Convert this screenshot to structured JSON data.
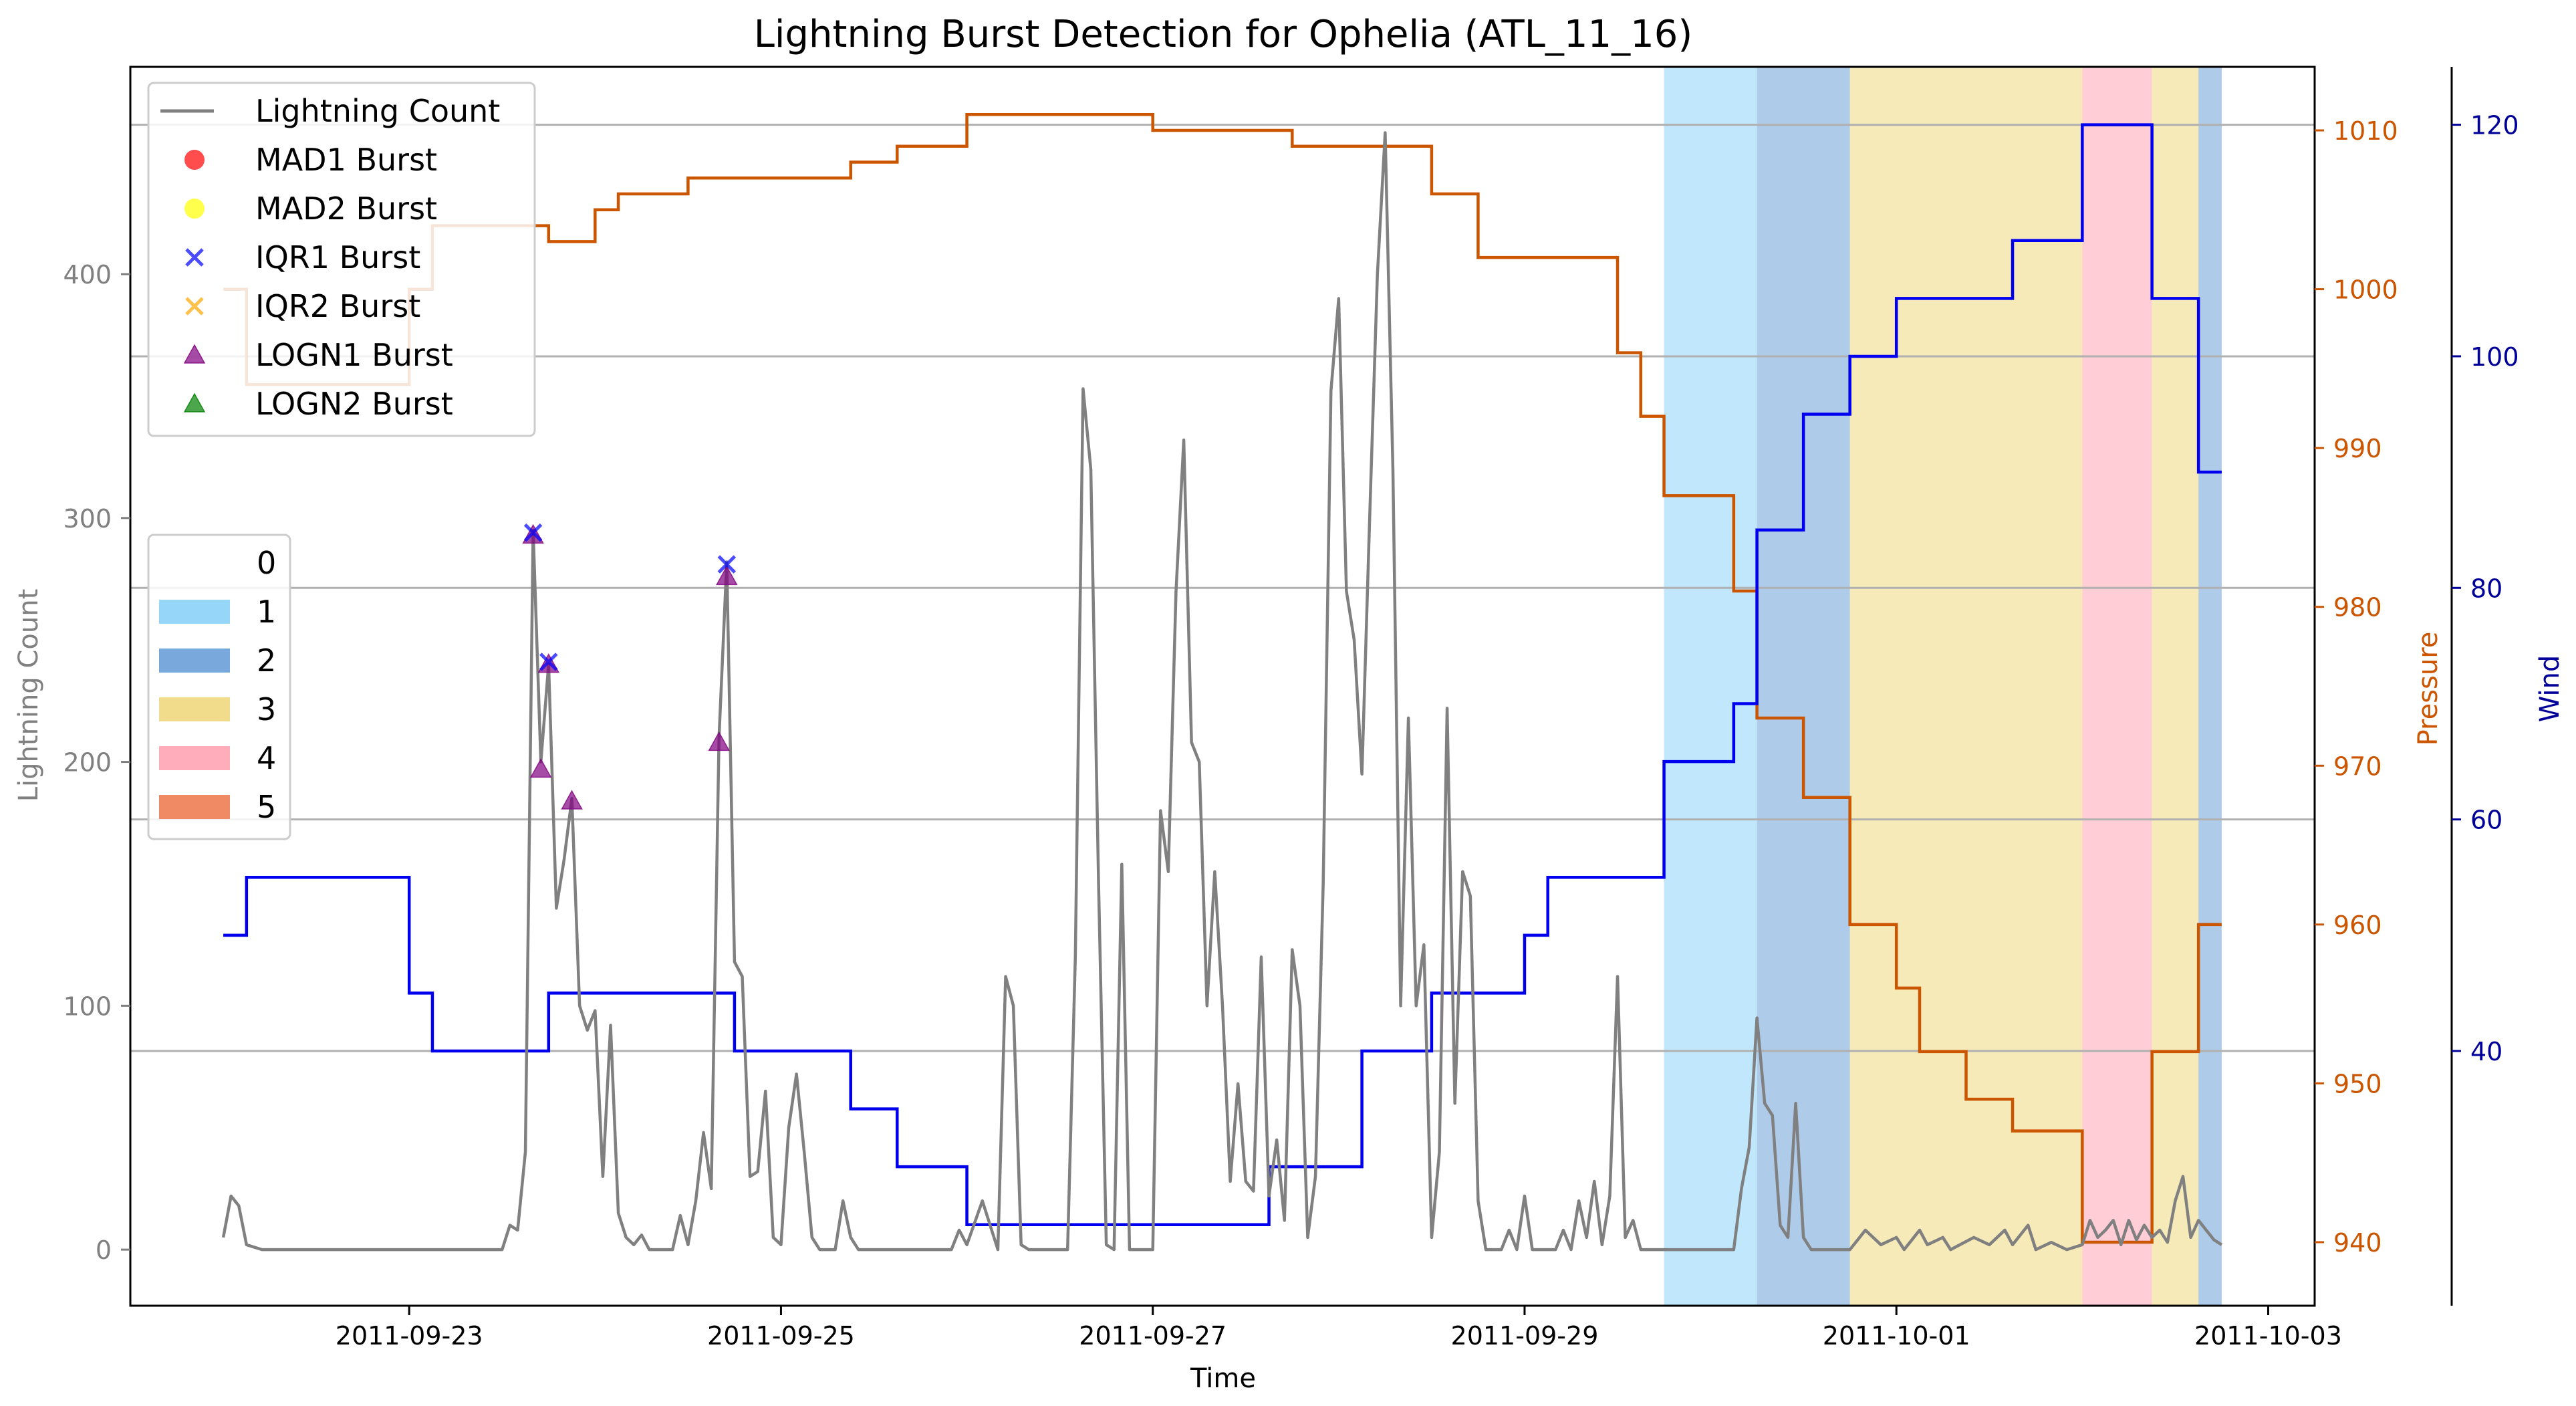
{
  "chart_data": {
    "type": "line",
    "title": "Lightning Burst Detection for Ophelia (ATL_11_16)",
    "xlabel": "Time",
    "ylabel_left": "Lightning Count",
    "ylabel_pressure": "Pressure",
    "ylabel_wind": "Wind",
    "x_range": [
      "2011-09-21 12:00",
      "2011-10-03 06:00"
    ],
    "x_ticks": [
      "2011-09-23",
      "2011-09-25",
      "2011-09-27",
      "2011-09-29",
      "2011-10-01",
      "2011-10-03"
    ],
    "y_left_range": [
      -23,
      485
    ],
    "y_left_ticks": [
      0,
      100,
      200,
      300,
      400
    ],
    "y_pressure_range": [
      936,
      1014
    ],
    "y_pressure_ticks": [
      940,
      950,
      960,
      970,
      980,
      990,
      1000,
      1010
    ],
    "y_wind_range": [
      18,
      125
    ],
    "y_wind_ticks": [
      40,
      60,
      80,
      100,
      120
    ],
    "grid": "horizontal",
    "colors": {
      "lightning": "#808080",
      "pressure": "#cc5500",
      "wind": "#0000ee",
      "cat1": "#96d7f9",
      "cat2": "#79a8dc",
      "cat3": "#f0dc8b",
      "cat4": "#ffacbb",
      "cat5": "#ef8a64",
      "mad1": "#ff0000",
      "mad2": "#ffff00",
      "iqr1": "#0000ff",
      "iqr2": "#ffa500",
      "logn1": "#800080",
      "logn2": "#008000"
    },
    "legend_series": {
      "placement": "upper-left",
      "entries": [
        {
          "key": "lightning",
          "label": "Lightning Count",
          "marker": "line"
        },
        {
          "key": "mad1",
          "label": "MAD1 Burst",
          "marker": "circle"
        },
        {
          "key": "mad2",
          "label": "MAD2 Burst",
          "marker": "circle"
        },
        {
          "key": "iqr1",
          "label": "IQR1 Burst",
          "marker": "x"
        },
        {
          "key": "iqr2",
          "label": "IQR2 Burst",
          "marker": "x"
        },
        {
          "key": "logn1",
          "label": "LOGN1 Burst",
          "marker": "triangle"
        },
        {
          "key": "logn2",
          "label": "LOGN2 Burst",
          "marker": "triangle"
        }
      ]
    },
    "legend_categories": {
      "placement": "center-left",
      "entries": [
        {
          "label": "0",
          "color": "none"
        },
        {
          "label": "1",
          "color": "#96d7f9"
        },
        {
          "label": "2",
          "color": "#79a8dc"
        },
        {
          "label": "3",
          "color": "#f0dc8b"
        },
        {
          "label": "4",
          "color": "#ffacbb"
        },
        {
          "label": "5",
          "color": "#ef8a64"
        }
      ]
    },
    "category_spans": [
      {
        "category": 1,
        "start": "2011-09-29 18:00",
        "end": "2011-09-30 06:00"
      },
      {
        "category": 2,
        "start": "2011-09-30 06:00",
        "end": "2011-09-30 18:00"
      },
      {
        "category": 3,
        "start": "2011-09-30 18:00",
        "end": "2011-10-02 00:00"
      },
      {
        "category": 4,
        "start": "2011-10-02 00:00",
        "end": "2011-10-02 09:00"
      },
      {
        "category": 3,
        "start": "2011-10-02 09:00",
        "end": "2011-10-02 15:00"
      },
      {
        "category": 2,
        "start": "2011-10-02 15:00",
        "end": "2011-10-02 18:00"
      }
    ],
    "pressure_series": [
      {
        "t": "2011-09-22 00:00",
        "v": 1000
      },
      {
        "t": "2011-09-22 03:00",
        "v": 994
      },
      {
        "t": "2011-09-23 00:00",
        "v": 1000
      },
      {
        "t": "2011-09-23 03:00",
        "v": 1004
      },
      {
        "t": "2011-09-23 18:00",
        "v": 1003
      },
      {
        "t": "2011-09-24 00:00",
        "v": 1005
      },
      {
        "t": "2011-09-24 03:00",
        "v": 1006
      },
      {
        "t": "2011-09-24 12:00",
        "v": 1007
      },
      {
        "t": "2011-09-25 09:00",
        "v": 1008
      },
      {
        "t": "2011-09-25 15:00",
        "v": 1009
      },
      {
        "t": "2011-09-26 00:00",
        "v": 1011
      },
      {
        "t": "2011-09-27 00:00",
        "v": 1010
      },
      {
        "t": "2011-09-27 18:00",
        "v": 1009
      },
      {
        "t": "2011-09-28 12:00",
        "v": 1006
      },
      {
        "t": "2011-09-28 18:00",
        "v": 1002
      },
      {
        "t": "2011-09-29 12:00",
        "v": 996
      },
      {
        "t": "2011-09-29 15:00",
        "v": 992
      },
      {
        "t": "2011-09-29 18:00",
        "v": 987
      },
      {
        "t": "2011-09-30 03:00",
        "v": 981
      },
      {
        "t": "2011-09-30 06:00",
        "v": 973
      },
      {
        "t": "2011-09-30 12:00",
        "v": 968
      },
      {
        "t": "2011-09-30 18:00",
        "v": 960
      },
      {
        "t": "2011-10-01 00:00",
        "v": 956
      },
      {
        "t": "2011-10-01 03:00",
        "v": 952
      },
      {
        "t": "2011-10-01 09:00",
        "v": 949
      },
      {
        "t": "2011-10-01 15:00",
        "v": 947
      },
      {
        "t": "2011-10-02 00:00",
        "v": 940
      },
      {
        "t": "2011-10-02 09:00",
        "v": 952
      },
      {
        "t": "2011-10-02 15:00",
        "v": 960
      },
      {
        "t": "2011-10-02 18:00",
        "v": 960
      }
    ],
    "wind_series": [
      {
        "t": "2011-09-22 00:00",
        "v": 50
      },
      {
        "t": "2011-09-22 03:00",
        "v": 55
      },
      {
        "t": "2011-09-23 00:00",
        "v": 45
      },
      {
        "t": "2011-09-23 03:00",
        "v": 40
      },
      {
        "t": "2011-09-23 18:00",
        "v": 45
      },
      {
        "t": "2011-09-24 18:00",
        "v": 40
      },
      {
        "t": "2011-09-25 09:00",
        "v": 35
      },
      {
        "t": "2011-09-25 15:00",
        "v": 30
      },
      {
        "t": "2011-09-26 00:00",
        "v": 25
      },
      {
        "t": "2011-09-27 15:00",
        "v": 30
      },
      {
        "t": "2011-09-28 03:00",
        "v": 40
      },
      {
        "t": "2011-09-28 12:00",
        "v": 45
      },
      {
        "t": "2011-09-29 00:00",
        "v": 50
      },
      {
        "t": "2011-09-29 03:00",
        "v": 55
      },
      {
        "t": "2011-09-29 18:00",
        "v": 65
      },
      {
        "t": "2011-09-30 03:00",
        "v": 70
      },
      {
        "t": "2011-09-30 06:00",
        "v": 85
      },
      {
        "t": "2011-09-30 12:00",
        "v": 95
      },
      {
        "t": "2011-09-30 18:00",
        "v": 100
      },
      {
        "t": "2011-10-01 00:00",
        "v": 105
      },
      {
        "t": "2011-10-01 15:00",
        "v": 110
      },
      {
        "t": "2011-10-02 00:00",
        "v": 120
      },
      {
        "t": "2011-10-02 09:00",
        "v": 105
      },
      {
        "t": "2011-10-02 15:00",
        "v": 90
      },
      {
        "t": "2011-10-02 18:00",
        "v": 90
      }
    ],
    "lightning_series": [
      {
        "t": "2011-09-22 00:00",
        "v": 5
      },
      {
        "t": "2011-09-22 01:00",
        "v": 22
      },
      {
        "t": "2011-09-22 02:00",
        "v": 18
      },
      {
        "t": "2011-09-22 03:00",
        "v": 2
      },
      {
        "t": "2011-09-22 05:00",
        "v": 0
      },
      {
        "t": "2011-09-23 12:00",
        "v": 0
      },
      {
        "t": "2011-09-23 13:00",
        "v": 10
      },
      {
        "t": "2011-09-23 14:00",
        "v": 8
      },
      {
        "t": "2011-09-23 15:00",
        "v": 40
      },
      {
        "t": "2011-09-23 16:00",
        "v": 295
      },
      {
        "t": "2011-09-23 17:00",
        "v": 200
      },
      {
        "t": "2011-09-23 18:00",
        "v": 240
      },
      {
        "t": "2011-09-23 19:00",
        "v": 140
      },
      {
        "t": "2011-09-23 20:00",
        "v": 160
      },
      {
        "t": "2011-09-23 21:00",
        "v": 185
      },
      {
        "t": "2011-09-23 22:00",
        "v": 100
      },
      {
        "t": "2011-09-23 23:00",
        "v": 90
      },
      {
        "t": "2011-09-24 00:00",
        "v": 98
      },
      {
        "t": "2011-09-24 01:00",
        "v": 30
      },
      {
        "t": "2011-09-24 02:00",
        "v": 92
      },
      {
        "t": "2011-09-24 03:00",
        "v": 15
      },
      {
        "t": "2011-09-24 04:00",
        "v": 5
      },
      {
        "t": "2011-09-24 05:00",
        "v": 2
      },
      {
        "t": "2011-09-24 06:00",
        "v": 6
      },
      {
        "t": "2011-09-24 07:00",
        "v": 0
      },
      {
        "t": "2011-09-24 10:00",
        "v": 0
      },
      {
        "t": "2011-09-24 11:00",
        "v": 14
      },
      {
        "t": "2011-09-24 12:00",
        "v": 2
      },
      {
        "t": "2011-09-24 13:00",
        "v": 20
      },
      {
        "t": "2011-09-24 14:00",
        "v": 48
      },
      {
        "t": "2011-09-24 15:00",
        "v": 25
      },
      {
        "t": "2011-09-24 16:00",
        "v": 210
      },
      {
        "t": "2011-09-24 17:00",
        "v": 282
      },
      {
        "t": "2011-09-24 18:00",
        "v": 118
      },
      {
        "t": "2011-09-24 19:00",
        "v": 112
      },
      {
        "t": "2011-09-24 20:00",
        "v": 30
      },
      {
        "t": "2011-09-24 21:00",
        "v": 32
      },
      {
        "t": "2011-09-24 22:00",
        "v": 65
      },
      {
        "t": "2011-09-24 23:00",
        "v": 5
      },
      {
        "t": "2011-09-25 00:00",
        "v": 2
      },
      {
        "t": "2011-09-25 01:00",
        "v": 50
      },
      {
        "t": "2011-09-25 02:00",
        "v": 72
      },
      {
        "t": "2011-09-25 03:00",
        "v": 40
      },
      {
        "t": "2011-09-25 04:00",
        "v": 5
      },
      {
        "t": "2011-09-25 05:00",
        "v": 0
      },
      {
        "t": "2011-09-25 07:00",
        "v": 0
      },
      {
        "t": "2011-09-25 08:00",
        "v": 20
      },
      {
        "t": "2011-09-25 09:00",
        "v": 5
      },
      {
        "t": "2011-09-25 10:00",
        "v": 0
      },
      {
        "t": "2011-09-25 22:00",
        "v": 0
      },
      {
        "t": "2011-09-25 23:00",
        "v": 8
      },
      {
        "t": "2011-09-26 00:00",
        "v": 2
      },
      {
        "t": "2011-09-26 02:00",
        "v": 20
      },
      {
        "t": "2011-09-26 03:00",
        "v": 10
      },
      {
        "t": "2011-09-26 04:00",
        "v": 0
      },
      {
        "t": "2011-09-26 05:00",
        "v": 112
      },
      {
        "t": "2011-09-26 06:00",
        "v": 100
      },
      {
        "t": "2011-09-26 07:00",
        "v": 2
      },
      {
        "t": "2011-09-26 08:00",
        "v": 0
      },
      {
        "t": "2011-09-26 13:00",
        "v": 0
      },
      {
        "t": "2011-09-26 14:00",
        "v": 120
      },
      {
        "t": "2011-09-26 15:00",
        "v": 353
      },
      {
        "t": "2011-09-26 16:00",
        "v": 320
      },
      {
        "t": "2011-09-26 17:00",
        "v": 150
      },
      {
        "t": "2011-09-26 18:00",
        "v": 2
      },
      {
        "t": "2011-09-26 19:00",
        "v": 0
      },
      {
        "t": "2011-09-26 20:00",
        "v": 158
      },
      {
        "t": "2011-09-26 21:00",
        "v": 0
      },
      {
        "t": "2011-09-27 00:00",
        "v": 0
      },
      {
        "t": "2011-09-27 01:00",
        "v": 180
      },
      {
        "t": "2011-09-27 02:00",
        "v": 155
      },
      {
        "t": "2011-09-27 03:00",
        "v": 270
      },
      {
        "t": "2011-09-27 04:00",
        "v": 332
      },
      {
        "t": "2011-09-27 05:00",
        "v": 208
      },
      {
        "t": "2011-09-27 06:00",
        "v": 200
      },
      {
        "t": "2011-09-27 07:00",
        "v": 100
      },
      {
        "t": "2011-09-27 08:00",
        "v": 155
      },
      {
        "t": "2011-09-27 09:00",
        "v": 100
      },
      {
        "t": "2011-09-27 10:00",
        "v": 28
      },
      {
        "t": "2011-09-27 11:00",
        "v": 68
      },
      {
        "t": "2011-09-27 12:00",
        "v": 28
      },
      {
        "t": "2011-09-27 13:00",
        "v": 24
      },
      {
        "t": "2011-09-27 14:00",
        "v": 120
      },
      {
        "t": "2011-09-27 15:00",
        "v": 22
      },
      {
        "t": "2011-09-27 16:00",
        "v": 45
      },
      {
        "t": "2011-09-27 17:00",
        "v": 12
      },
      {
        "t": "2011-09-27 18:00",
        "v": 123
      },
      {
        "t": "2011-09-27 19:00",
        "v": 100
      },
      {
        "t": "2011-09-27 20:00",
        "v": 5
      },
      {
        "t": "2011-09-27 21:00",
        "v": 30
      },
      {
        "t": "2011-09-27 22:00",
        "v": 150
      },
      {
        "t": "2011-09-27 23:00",
        "v": 352
      },
      {
        "t": "2011-09-28 00:00",
        "v": 390
      },
      {
        "t": "2011-09-28 01:00",
        "v": 270
      },
      {
        "t": "2011-09-28 02:00",
        "v": 250
      },
      {
        "t": "2011-09-28 03:00",
        "v": 195
      },
      {
        "t": "2011-09-28 04:00",
        "v": 300
      },
      {
        "t": "2011-09-28 05:00",
        "v": 400
      },
      {
        "t": "2011-09-28 06:00",
        "v": 458
      },
      {
        "t": "2011-09-28 07:00",
        "v": 320
      },
      {
        "t": "2011-09-28 08:00",
        "v": 100
      },
      {
        "t": "2011-09-28 09:00",
        "v": 218
      },
      {
        "t": "2011-09-28 10:00",
        "v": 100
      },
      {
        "t": "2011-09-28 11:00",
        "v": 125
      },
      {
        "t": "2011-09-28 12:00",
        "v": 5
      },
      {
        "t": "2011-09-28 13:00",
        "v": 40
      },
      {
        "t": "2011-09-28 14:00",
        "v": 222
      },
      {
        "t": "2011-09-28 15:00",
        "v": 60
      },
      {
        "t": "2011-09-28 16:00",
        "v": 155
      },
      {
        "t": "2011-09-28 17:00",
        "v": 145
      },
      {
        "t": "2011-09-28 18:00",
        "v": 20
      },
      {
        "t": "2011-09-28 19:00",
        "v": 0
      },
      {
        "t": "2011-09-28 21:00",
        "v": 0
      },
      {
        "t": "2011-09-28 22:00",
        "v": 8
      },
      {
        "t": "2011-09-28 23:00",
        "v": 0
      },
      {
        "t": "2011-09-29 00:00",
        "v": 22
      },
      {
        "t": "2011-09-29 01:00",
        "v": 0
      },
      {
        "t": "2011-09-29 04:00",
        "v": 0
      },
      {
        "t": "2011-09-29 05:00",
        "v": 8
      },
      {
        "t": "2011-09-29 06:00",
        "v": 0
      },
      {
        "t": "2011-09-29 07:00",
        "v": 20
      },
      {
        "t": "2011-09-29 08:00",
        "v": 5
      },
      {
        "t": "2011-09-29 09:00",
        "v": 28
      },
      {
        "t": "2011-09-29 10:00",
        "v": 2
      },
      {
        "t": "2011-09-29 11:00",
        "v": 22
      },
      {
        "t": "2011-09-29 12:00",
        "v": 112
      },
      {
        "t": "2011-09-29 13:00",
        "v": 5
      },
      {
        "t": "2011-09-29 14:00",
        "v": 12
      },
      {
        "t": "2011-09-29 15:00",
        "v": 0
      },
      {
        "t": "2011-09-30 03:00",
        "v": 0
      },
      {
        "t": "2011-09-30 04:00",
        "v": 25
      },
      {
        "t": "2011-09-30 05:00",
        "v": 42
      },
      {
        "t": "2011-09-30 06:00",
        "v": 95
      },
      {
        "t": "2011-09-30 07:00",
        "v": 60
      },
      {
        "t": "2011-09-30 08:00",
        "v": 55
      },
      {
        "t": "2011-09-30 09:00",
        "v": 10
      },
      {
        "t": "2011-09-30 10:00",
        "v": 5
      },
      {
        "t": "2011-09-30 11:00",
        "v": 60
      },
      {
        "t": "2011-09-30 12:00",
        "v": 5
      },
      {
        "t": "2011-09-30 13:00",
        "v": 0
      },
      {
        "t": "2011-09-30 18:00",
        "v": 0
      },
      {
        "t": "2011-09-30 20:00",
        "v": 8
      },
      {
        "t": "2011-09-30 22:00",
        "v": 2
      },
      {
        "t": "2011-10-01 00:00",
        "v": 5
      },
      {
        "t": "2011-10-01 01:00",
        "v": 0
      },
      {
        "t": "2011-10-01 03:00",
        "v": 8
      },
      {
        "t": "2011-10-01 04:00",
        "v": 2
      },
      {
        "t": "2011-10-01 06:00",
        "v": 5
      },
      {
        "t": "2011-10-01 07:00",
        "v": 0
      },
      {
        "t": "2011-10-01 10:00",
        "v": 5
      },
      {
        "t": "2011-10-01 12:00",
        "v": 2
      },
      {
        "t": "2011-10-01 14:00",
        "v": 8
      },
      {
        "t": "2011-10-01 15:00",
        "v": 2
      },
      {
        "t": "2011-10-01 17:00",
        "v": 10
      },
      {
        "t": "2011-10-01 18:00",
        "v": 0
      },
      {
        "t": "2011-10-01 20:00",
        "v": 3
      },
      {
        "t": "2011-10-01 22:00",
        "v": 0
      },
      {
        "t": "2011-10-02 00:00",
        "v": 2
      },
      {
        "t": "2011-10-02 01:00",
        "v": 12
      },
      {
        "t": "2011-10-02 02:00",
        "v": 5
      },
      {
        "t": "2011-10-02 03:00",
        "v": 8
      },
      {
        "t": "2011-10-02 04:00",
        "v": 12
      },
      {
        "t": "2011-10-02 05:00",
        "v": 2
      },
      {
        "t": "2011-10-02 06:00",
        "v": 12
      },
      {
        "t": "2011-10-02 07:00",
        "v": 4
      },
      {
        "t": "2011-10-02 08:00",
        "v": 10
      },
      {
        "t": "2011-10-02 09:00",
        "v": 5
      },
      {
        "t": "2011-10-02 10:00",
        "v": 8
      },
      {
        "t": "2011-10-02 11:00",
        "v": 3
      },
      {
        "t": "2011-10-02 12:00",
        "v": 20
      },
      {
        "t": "2011-10-02 13:00",
        "v": 30
      },
      {
        "t": "2011-10-02 14:00",
        "v": 5
      },
      {
        "t": "2011-10-02 15:00",
        "v": 12
      },
      {
        "t": "2011-10-02 16:00",
        "v": 8
      },
      {
        "t": "2011-10-02 17:00",
        "v": 4
      },
      {
        "t": "2011-10-02 18:00",
        "v": 2
      }
    ],
    "bursts": {
      "iqr1": [
        {
          "t": "2011-09-23 16:00",
          "v": 294
        },
        {
          "t": "2011-09-23 18:00",
          "v": 241
        },
        {
          "t": "2011-09-24 17:00",
          "v": 281
        }
      ],
      "logn1": [
        {
          "t": "2011-09-23 16:00",
          "v": 293
        },
        {
          "t": "2011-09-23 17:00",
          "v": 197
        },
        {
          "t": "2011-09-23 18:00",
          "v": 240
        },
        {
          "t": "2011-09-23 21:00",
          "v": 184
        },
        {
          "t": "2011-09-24 16:00",
          "v": 208
        },
        {
          "t": "2011-09-24 17:00",
          "v": 276
        }
      ]
    }
  }
}
